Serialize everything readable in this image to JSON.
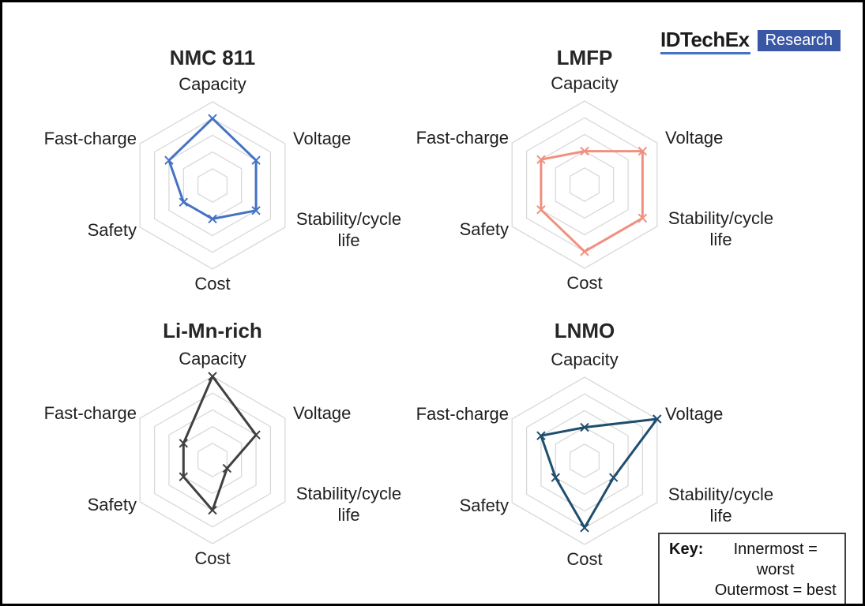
{
  "page": {
    "background": "#ffffff",
    "border_color": "#000000"
  },
  "logo": {
    "brand": "IDTechEx",
    "suffix": "Research",
    "underline_color": "#4472C4",
    "badge_color": "#3A57A5"
  },
  "key_box": {
    "label": "Key:",
    "line1": "Innermost = worst",
    "line2": "Outermost = best"
  },
  "chart_data": {
    "type": "radar",
    "levels": 5,
    "grid": "concentric hexagons, no radial spokes",
    "grid_color": "#D9D9D9",
    "value_range": [
      0,
      5
    ],
    "categories": [
      "Capacity",
      "Voltage",
      "Stability/cycle life",
      "Cost",
      "Safety",
      "Fast-charge"
    ],
    "charts": [
      {
        "title": "NMC 811",
        "color": "#4472C4",
        "values": [
          4,
          3,
          3,
          2,
          2,
          3
        ]
      },
      {
        "title": "LMFP",
        "color": "#F0907E",
        "values": [
          2,
          4,
          4,
          4,
          3,
          3
        ]
      },
      {
        "title": "Li-Mn-rich",
        "color": "#404040",
        "values": [
          5,
          3,
          1,
          3,
          2,
          2
        ]
      },
      {
        "title": "LNMO",
        "color": "#1F4E6E",
        "values": [
          2,
          5,
          2,
          4,
          2,
          3
        ]
      }
    ]
  }
}
